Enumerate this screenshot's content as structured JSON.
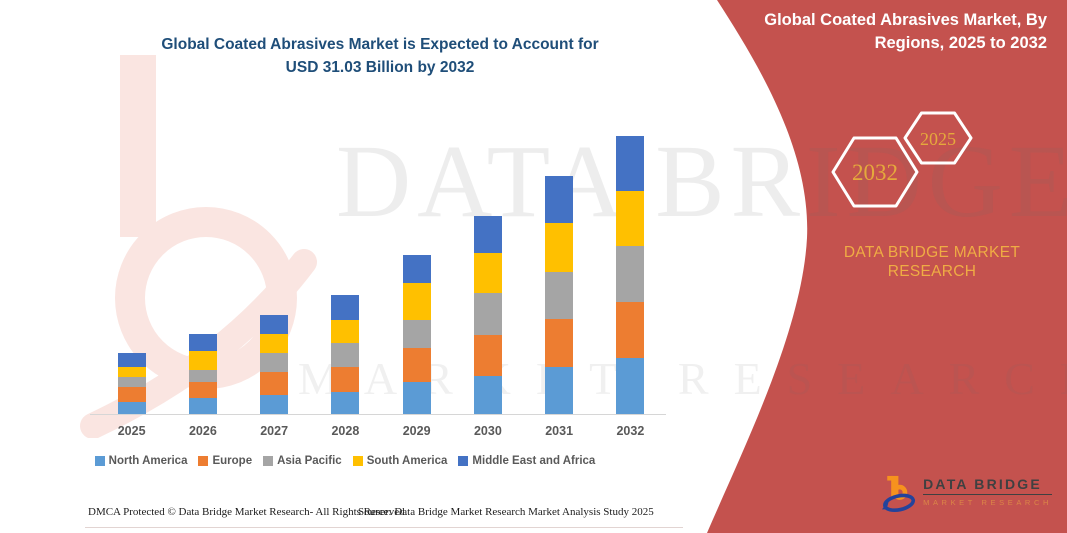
{
  "header": {
    "title_line1": "Global Coated Abrasives Market is Expected to Account for",
    "title_line2": "USD 31.03 Billion by 2032"
  },
  "panel": {
    "title_line1": "Global Coated Abrasives Market, By",
    "title_line2": "Regions, 2025 to 2032",
    "hexagons": [
      {
        "year": "2032"
      },
      {
        "year": "2025"
      }
    ],
    "brand_line1": "DATA BRIDGE MARKET",
    "brand_line2": "RESEARCH",
    "bg_color": "#C4524E",
    "accent_gold": "#E5A93C"
  },
  "logo": {
    "name_text": "DATA BRIDGE",
    "sub_text": "MARKET RESEARCH"
  },
  "watermark": {
    "big_text": "DATA BRIDGE",
    "sub_text": "MARKET RESEARCH"
  },
  "footer": {
    "left": "DMCA Protected © Data Bridge Market Research-  All Rights Reserved.",
    "source": "Source: Data Bridge Market Research  Market Analysis Study 2025"
  },
  "chart_data": {
    "type": "bar",
    "stacked": true,
    "title": "Global Coated Abrasives Market is Expected to Account for USD 31.03 Billion by 2032",
    "unit": "USD Billion",
    "grid": false,
    "legend_position": "bottom",
    "ylim": [
      0,
      31.03
    ],
    "categories": [
      "2025",
      "2026",
      "2027",
      "2028",
      "2029",
      "2030",
      "2031",
      "2032"
    ],
    "series": [
      {
        "name": "North America",
        "color": "#5B9BD5",
        "values": [
          1.34,
          1.79,
          2.12,
          2.46,
          3.57,
          4.24,
          5.25,
          6.25
        ]
      },
      {
        "name": "Europe",
        "color": "#ED7D31",
        "values": [
          1.67,
          1.79,
          2.57,
          2.79,
          3.79,
          4.58,
          5.36,
          6.25
        ]
      },
      {
        "name": "Asia Pacific",
        "color": "#A5A5A5",
        "values": [
          1.12,
          1.34,
          2.12,
          2.68,
          3.12,
          4.69,
          5.25,
          6.25
        ]
      },
      {
        "name": "South America",
        "color": "#FFC000",
        "values": [
          1.12,
          2.12,
          2.12,
          2.57,
          4.13,
          4.46,
          5.47,
          6.14
        ]
      },
      {
        "name": "Middle East and Africa",
        "color": "#4472C4",
        "values": [
          1.56,
          1.9,
          2.12,
          2.79,
          3.12,
          4.13,
          5.25,
          6.14
        ]
      }
    ],
    "totals": [
      6.81,
      8.94,
      11.05,
      13.29,
      17.73,
      22.1,
      26.58,
      31.03
    ]
  }
}
